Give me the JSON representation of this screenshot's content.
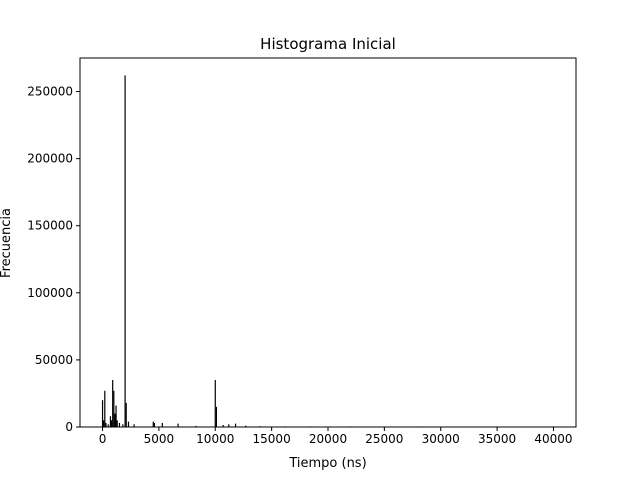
{
  "chart_data": {
    "type": "bar",
    "title": "Histograma Inicial",
    "xlabel": "Tiempo (ns)",
    "ylabel": "Frecuencia",
    "xlim": [
      -2000,
      42000
    ],
    "ylim": [
      0,
      275000
    ],
    "xticks": [
      0,
      5000,
      10000,
      15000,
      20000,
      25000,
      30000,
      35000,
      40000
    ],
    "xtick_labels": [
      "0",
      "5000",
      "10000",
      "15000",
      "20000",
      "25000",
      "30000",
      "35000",
      "40000"
    ],
    "yticks": [
      0,
      50000,
      100000,
      150000,
      200000,
      250000
    ],
    "ytick_labels": [
      "0",
      "50000",
      "100000",
      "150000",
      "200000",
      "250000"
    ],
    "grid": false,
    "bar_color": "#000000",
    "bins": [
      {
        "x": 0,
        "value": 20000
      },
      {
        "x": 100,
        "value": 5000
      },
      {
        "x": 200,
        "value": 27000
      },
      {
        "x": 300,
        "value": 3000
      },
      {
        "x": 500,
        "value": 2000
      },
      {
        "x": 700,
        "value": 8000
      },
      {
        "x": 800,
        "value": 5000
      },
      {
        "x": 900,
        "value": 35000
      },
      {
        "x": 1000,
        "value": 27000
      },
      {
        "x": 1100,
        "value": 10000
      },
      {
        "x": 1200,
        "value": 16000
      },
      {
        "x": 1300,
        "value": 5000
      },
      {
        "x": 1500,
        "value": 3000
      },
      {
        "x": 1800,
        "value": 2000
      },
      {
        "x": 2000,
        "value": 262000
      },
      {
        "x": 2100,
        "value": 18000
      },
      {
        "x": 2300,
        "value": 4000
      },
      {
        "x": 2800,
        "value": 2000
      },
      {
        "x": 4500,
        "value": 4000
      },
      {
        "x": 4600,
        "value": 3000
      },
      {
        "x": 5300,
        "value": 3000
      },
      {
        "x": 6700,
        "value": 2500
      },
      {
        "x": 8300,
        "value": 800
      },
      {
        "x": 10000,
        "value": 35000
      },
      {
        "x": 10100,
        "value": 15000
      },
      {
        "x": 10700,
        "value": 1500
      },
      {
        "x": 11200,
        "value": 2000
      },
      {
        "x": 11800,
        "value": 2500
      },
      {
        "x": 12700,
        "value": 1000
      },
      {
        "x": 14000,
        "value": 600
      },
      {
        "x": 16200,
        "value": 500
      },
      {
        "x": 18500,
        "value": 400
      },
      {
        "x": 22000,
        "value": 300
      },
      {
        "x": 28000,
        "value": 200
      },
      {
        "x": 35000,
        "value": 150
      },
      {
        "x": 40000,
        "value": 150
      }
    ]
  }
}
